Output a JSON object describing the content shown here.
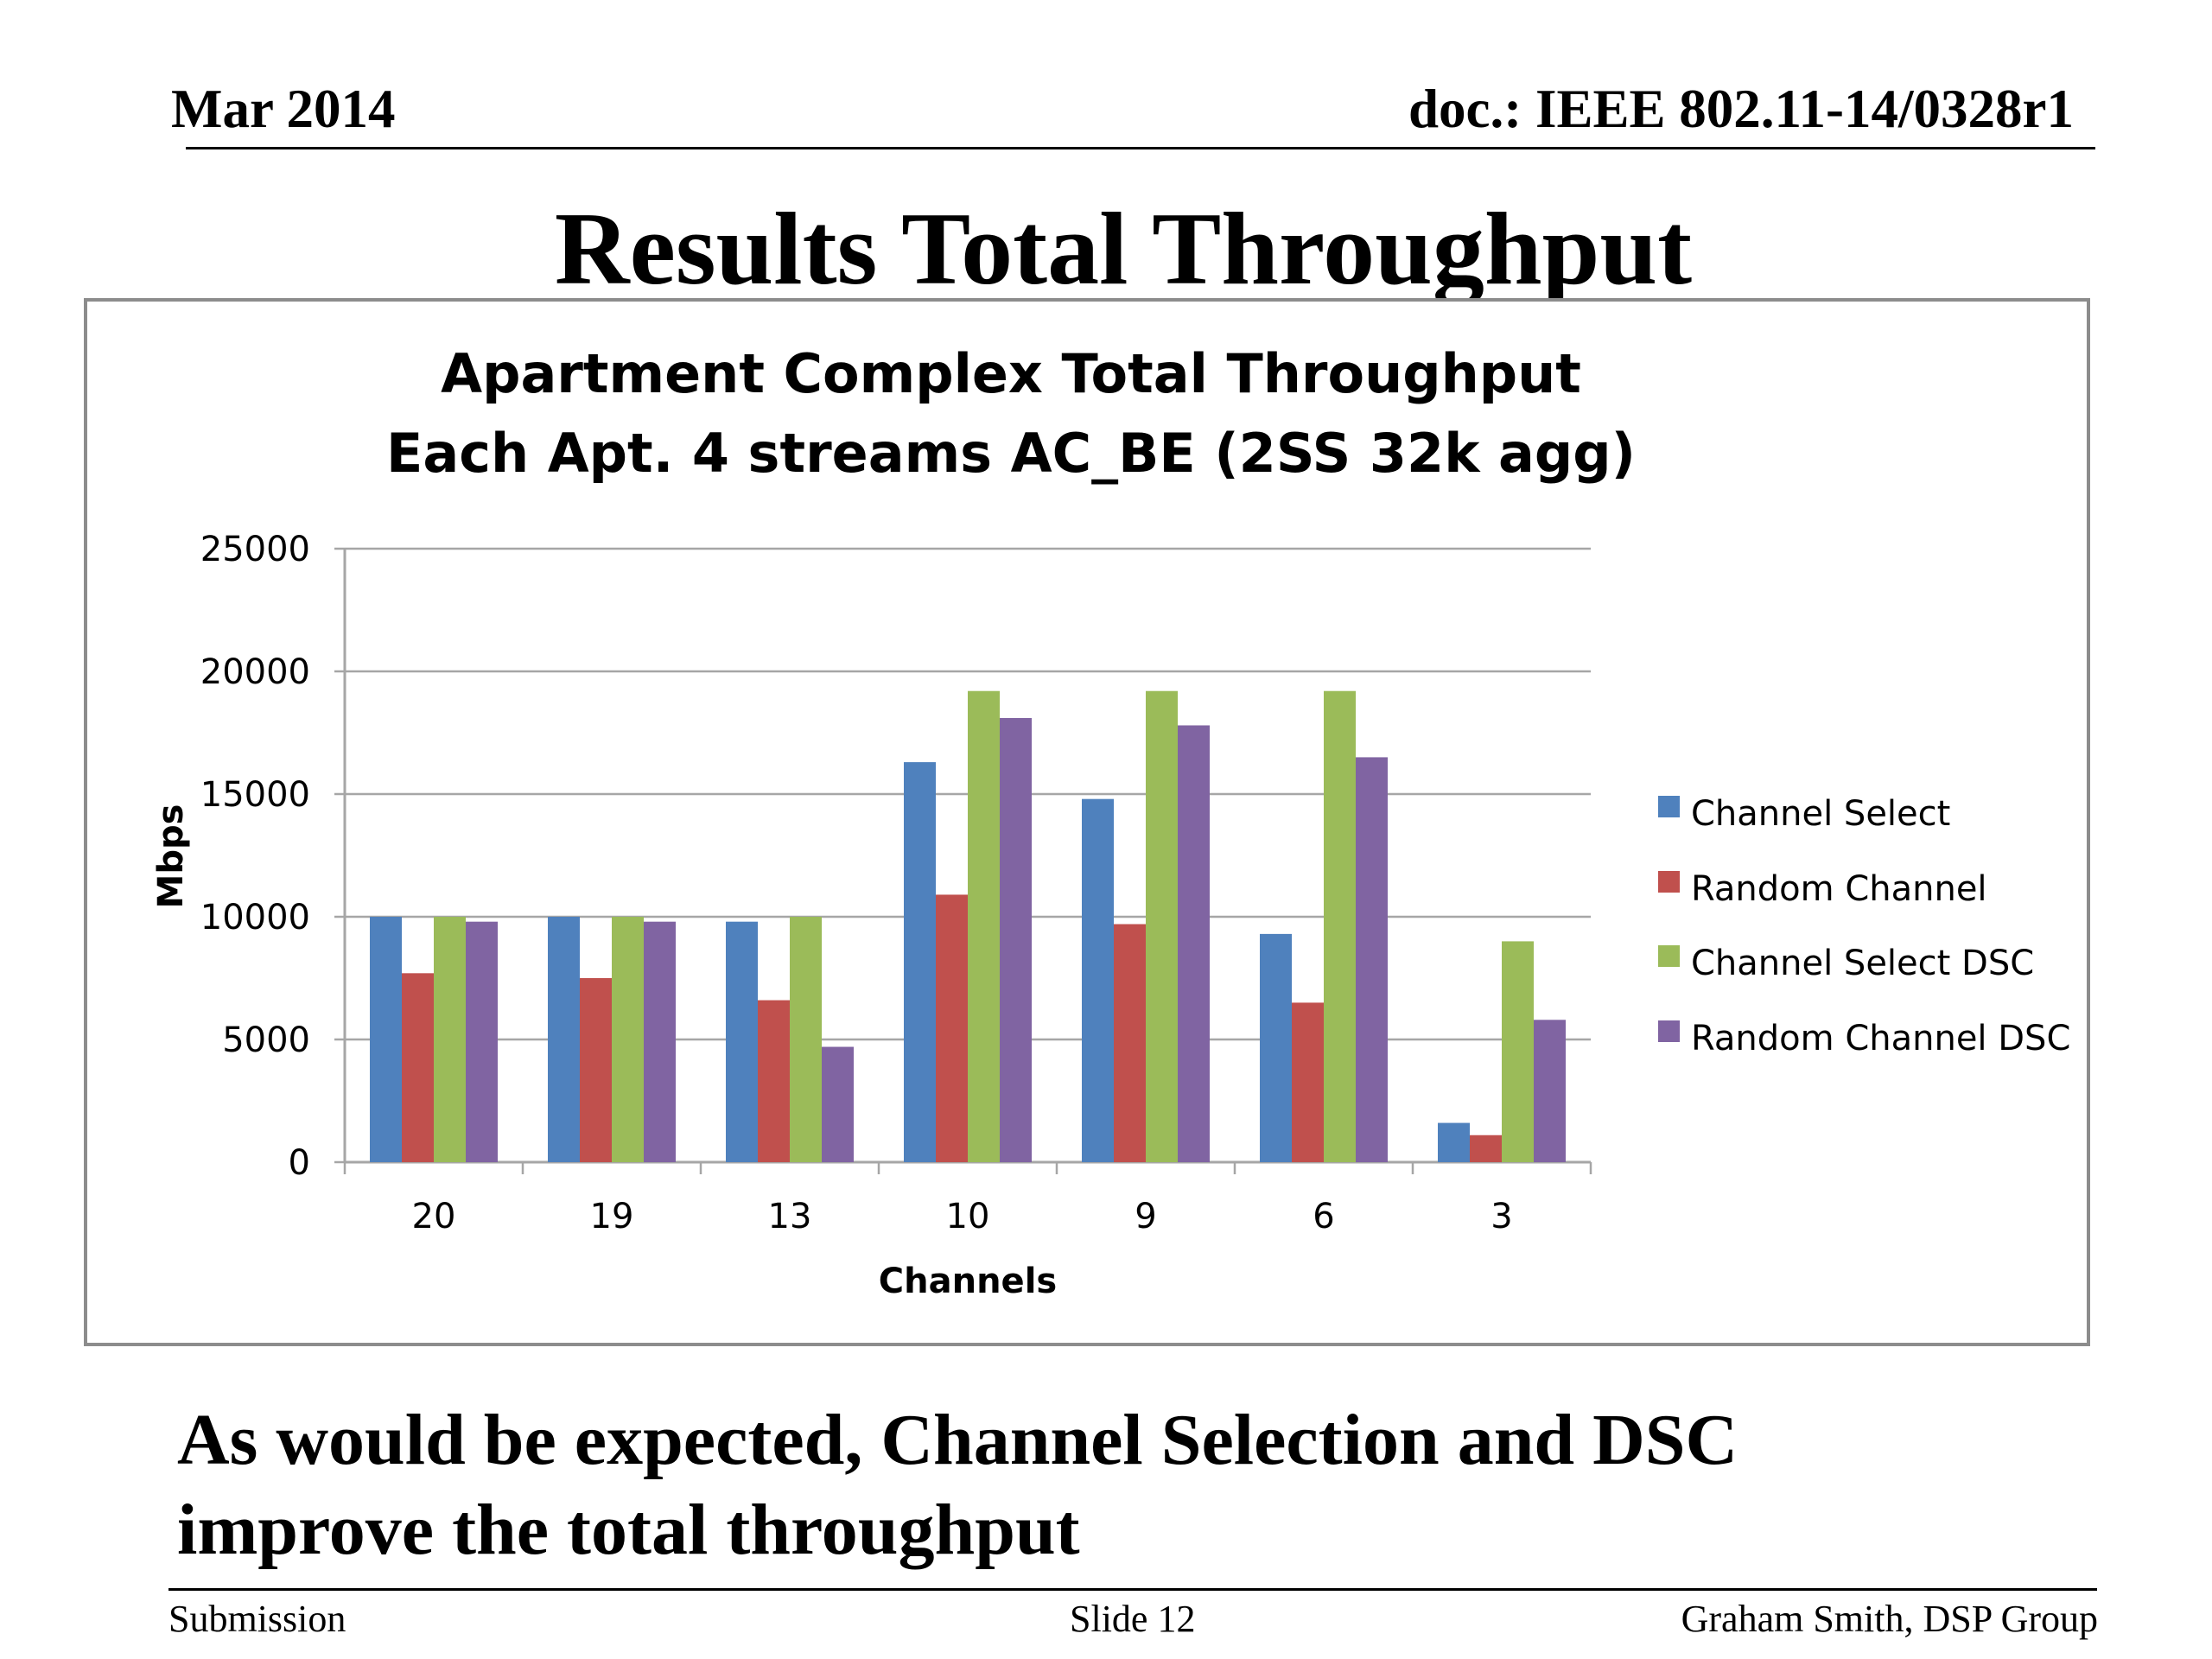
{
  "header": {
    "date": "Mar 2014",
    "doc_id": "doc.: IEEE 802.11-14/0328r1"
  },
  "slide_title": "Results Total Throughput",
  "chart_data": {
    "type": "bar",
    "title": "Apartment Complex Total Throughput",
    "subtitle": "Each Apt. 4 streams AC_BE (2SS 32k agg)",
    "xlabel": "Channels",
    "ylabel": "Mbps",
    "ylim": [
      0,
      25000
    ],
    "yticks": [
      0,
      5000,
      10000,
      15000,
      20000,
      25000
    ],
    "grid": true,
    "legend_position": "right",
    "categories": [
      "20",
      "19",
      "13",
      "10",
      "9",
      "6",
      "3"
    ],
    "series": [
      {
        "name": "Channel Select",
        "color": "#4f81bd",
        "values": [
          10000,
          10000,
          9800,
          16300,
          14800,
          9300,
          1600
        ]
      },
      {
        "name": "Random Channel",
        "color": "#c0504d",
        "values": [
          7700,
          7500,
          6600,
          10900,
          9700,
          6500,
          1100
        ]
      },
      {
        "name": "Channel Select DSC",
        "color": "#9bbb59",
        "values": [
          10000,
          10000,
          10000,
          19200,
          19200,
          19200,
          9000
        ]
      },
      {
        "name": "Random Channel DSC",
        "color": "#8064a2",
        "values": [
          9800,
          9800,
          4700,
          18100,
          17800,
          16500,
          5800
        ]
      }
    ]
  },
  "body_text": {
    "line1": "As would be expected, Channel Selection and DSC",
    "line2": "improve the total throughput"
  },
  "footer": {
    "left": "Submission",
    "center": "Slide 12",
    "right": "Graham Smith, DSP Group"
  }
}
